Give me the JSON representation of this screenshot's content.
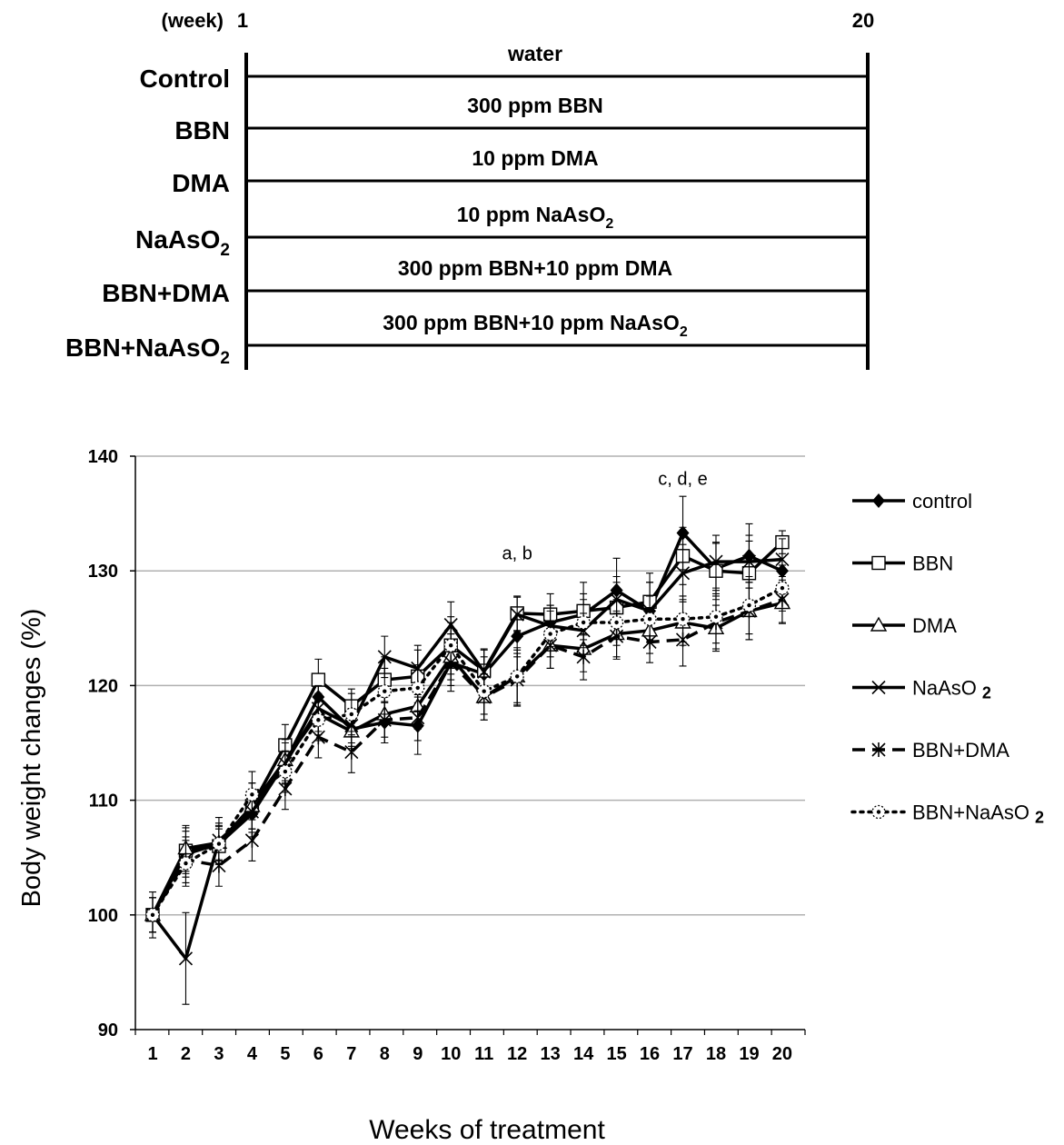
{
  "schema": {
    "start_label": "(week)",
    "start_week": "1",
    "end_week": "20",
    "groups": [
      {
        "name": "Control",
        "name_sub": "",
        "treatment": "water",
        "treatment_sub": ""
      },
      {
        "name": "BBN",
        "name_sub": "",
        "treatment": "300 ppm BBN",
        "treatment_sub": ""
      },
      {
        "name": "DMA",
        "name_sub": "",
        "treatment": "10 ppm DMA",
        "treatment_sub": ""
      },
      {
        "name": "NaAsO",
        "name_sub": "2",
        "treatment": "10 ppm NaAsO",
        "treatment_sub": "2"
      },
      {
        "name": "BBN+DMA",
        "name_sub": "",
        "treatment": "300 ppm BBN+10 ppm DMA",
        "treatment_sub": ""
      },
      {
        "name": "BBN+NaAsO",
        "name_sub": "2",
        "treatment": "300 ppm BBN+10 ppm NaAsO",
        "treatment_sub": "2"
      }
    ]
  },
  "chart_data": {
    "type": "line",
    "ylabel": "Body weight changes (%)",
    "xlabel": "Weeks of treatment",
    "ylim": [
      90,
      140
    ],
    "yticks": [
      90,
      100,
      110,
      120,
      130,
      140
    ],
    "x": [
      1,
      2,
      3,
      4,
      5,
      6,
      7,
      8,
      9,
      10,
      11,
      12,
      13,
      14,
      15,
      16,
      17,
      18,
      19,
      20
    ],
    "grid": true,
    "legend_position": "right",
    "annotations": [
      {
        "text": "a, b",
        "x": 12,
        "y": 131
      },
      {
        "text": "c, d, e",
        "x": 17,
        "y": 137.5
      }
    ],
    "series": [
      {
        "name": "control",
        "name_sub": "",
        "marker": "diamond",
        "line": "solid",
        "values": [
          100,
          105.3,
          106.2,
          108.8,
          113.3,
          119,
          116.2,
          116.8,
          116.5,
          122,
          121,
          124.3,
          125.5,
          126.2,
          128.3,
          126.5,
          133.3,
          130.2,
          131.3,
          130
        ],
        "errors": [
          1.5,
          2,
          1.5,
          2,
          1.8,
          2,
          1.5,
          1.8,
          2.5,
          2.5,
          1.5,
          1.8,
          1.5,
          1.8,
          2.8,
          2.5,
          3.2,
          2.2,
          2.8,
          2
        ]
      },
      {
        "name": "BBN",
        "name_sub": "",
        "marker": "square",
        "line": "solid",
        "values": [
          100,
          105.6,
          106,
          109.5,
          114.8,
          120.5,
          118.2,
          120.5,
          120.8,
          123.5,
          121.3,
          126.3,
          126.2,
          126.5,
          126.8,
          127.3,
          131.3,
          130,
          129.8,
          132.5
        ],
        "errors": [
          1.5,
          2,
          1.5,
          2,
          1.8,
          1.8,
          1.5,
          2,
          2.3,
          2.5,
          1.8,
          1.5,
          1.8,
          2.5,
          2.2,
          2.5,
          2.5,
          2.5,
          2.8,
          1
        ]
      },
      {
        "name": "DMA",
        "name_sub": "",
        "marker": "triangle",
        "line": "solid",
        "values": [
          100,
          105.8,
          106.3,
          109.5,
          113.5,
          117.5,
          116,
          117.5,
          118.2,
          122.5,
          119,
          120.8,
          123.5,
          123.2,
          124.5,
          124.8,
          125.5,
          125,
          126.5,
          127.2
        ],
        "errors": [
          1.5,
          2,
          1.5,
          2,
          1.8,
          1.8,
          1.5,
          2,
          2,
          2,
          2,
          2.5,
          2,
          2,
          2,
          2,
          2,
          2,
          2.5,
          1.8
        ]
      },
      {
        "name": "NaAsO",
        "name_sub": "2",
        "marker": "x",
        "line": "solid",
        "values": [
          100,
          96.2,
          106.5,
          109,
          113.2,
          118,
          116.5,
          122.5,
          121.5,
          125.3,
          121.2,
          126.2,
          125.2,
          124.8,
          127.5,
          126.5,
          129.8,
          130.8,
          130.8,
          131
        ],
        "errors": [
          2,
          4,
          2,
          1.8,
          1.8,
          2,
          1.5,
          1.8,
          2,
          2,
          2,
          1.5,
          1.8,
          1.5,
          2,
          2.5,
          2.5,
          2.3,
          2.3,
          1.8
        ]
      },
      {
        "name": "BBN+DMA",
        "name_sub": "",
        "marker": "asterisk",
        "line": "dashed",
        "values": [
          100,
          104.8,
          104.3,
          106.5,
          111,
          115.5,
          114.2,
          117,
          117.2,
          122,
          119,
          120.5,
          123.5,
          122.5,
          124.3,
          123.8,
          124,
          125.5,
          126.5,
          127.5
        ],
        "errors": [
          1.5,
          2,
          1.8,
          1.8,
          1.8,
          1.8,
          1.8,
          2,
          2,
          2,
          2,
          2.3,
          2,
          2,
          2,
          1.8,
          2.3,
          2.3,
          2.5,
          2
        ]
      },
      {
        "name": "BBN+NaAsO",
        "name_sub": "2",
        "marker": "circle",
        "line": "dotted",
        "values": [
          100,
          104.5,
          106.2,
          110.5,
          112.5,
          117,
          117.5,
          119.5,
          119.8,
          123.5,
          119.5,
          120.8,
          124.5,
          125.5,
          125.5,
          125.8,
          125.8,
          126,
          127,
          128.5
        ],
        "errors": [
          1.5,
          2,
          1.8,
          2,
          1.8,
          1.8,
          1.8,
          2,
          2,
          2,
          2,
          2.3,
          2,
          2,
          2,
          2,
          2,
          2.3,
          2.5,
          2
        ]
      }
    ]
  }
}
